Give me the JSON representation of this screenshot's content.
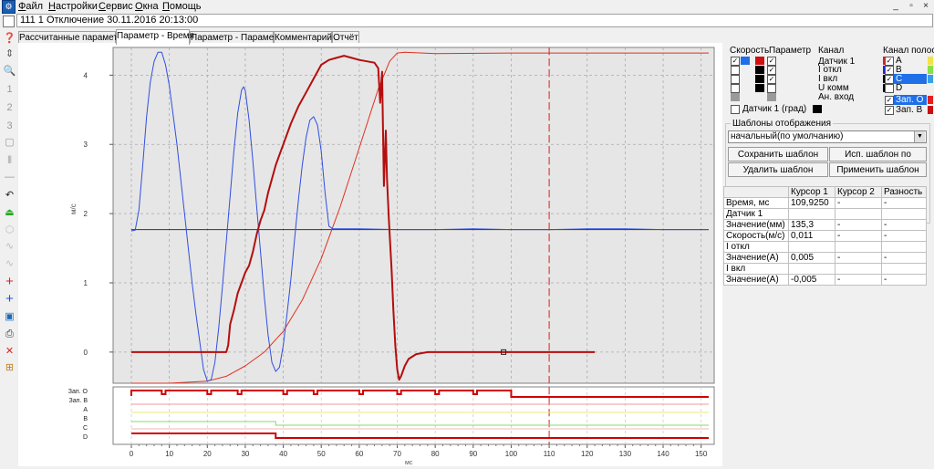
{
  "menu": [
    "Файл",
    "Настройки",
    "Сервис",
    "Окна",
    "Помощь"
  ],
  "window_controls": [
    "_",
    "▫",
    "×"
  ],
  "document_title": "111 1 Отключение 30.11.2016 20:13:00",
  "toolbar_icons": [
    "open-icon",
    "help-icon",
    "fit-icon",
    "zoom-icon",
    "cursor-1-icon",
    "cursor-2-icon",
    "cursor-3-icon",
    "frame-icon",
    "bar-icon",
    "line-icon",
    "undo-icon",
    "marker-icon",
    "shape-icon",
    "wave-icon",
    "wave2-icon",
    "add-red-icon",
    "add-blue-icon",
    "select-icon",
    "print-icon",
    "close-icon",
    "grid-icon"
  ],
  "tabs": [
    "Рассчитанные параметры",
    "Параметр - Время",
    "Параметр - Параметр",
    "Комментарий",
    "Отчёт"
  ],
  "active_tab": "Параметр - Время",
  "chart_data": {
    "type": "line",
    "ylabel": "м/с",
    "xlabel": "мс",
    "xlim": [
      -3,
      151
    ],
    "ylim": [
      -0.45,
      4.4
    ],
    "x_ticks": [
      0,
      10,
      20,
      30,
      40,
      50,
      60,
      70,
      80,
      90,
      100,
      110,
      120,
      130,
      140,
      150
    ],
    "y_ticks": [
      0,
      1,
      2,
      3,
      4
    ],
    "grid": true,
    "cursor_x": 110,
    "series": [
      {
        "color": "#2f4fe0",
        "points": [
          [
            0,
            1.75
          ],
          [
            1,
            1.76
          ],
          [
            2,
            2.05
          ],
          [
            3,
            2.7
          ],
          [
            4,
            3.4
          ],
          [
            5,
            3.9
          ],
          [
            6,
            4.2
          ],
          [
            7,
            4.33
          ],
          [
            8,
            4.33
          ],
          [
            9,
            4.15
          ],
          [
            10,
            3.85
          ],
          [
            12,
            3.0
          ],
          [
            14,
            2.0
          ],
          [
            16,
            1.0
          ],
          [
            17,
            0.55
          ],
          [
            18,
            0.15
          ],
          [
            19,
            -0.25
          ],
          [
            20,
            -0.42
          ],
          [
            21,
            -0.4
          ],
          [
            22,
            -0.15
          ],
          [
            23,
            0.35
          ],
          [
            24,
            0.95
          ],
          [
            25,
            1.6
          ],
          [
            26,
            2.25
          ],
          [
            27,
            2.9
          ],
          [
            28,
            3.45
          ],
          [
            29,
            3.78
          ],
          [
            29.5,
            3.83
          ],
          [
            30,
            3.78
          ],
          [
            31,
            3.35
          ],
          [
            32,
            2.75
          ],
          [
            33,
            2.1
          ],
          [
            34,
            1.45
          ],
          [
            35,
            0.8
          ],
          [
            36,
            0.25
          ],
          [
            37,
            -0.15
          ],
          [
            38,
            -0.28
          ],
          [
            39,
            -0.22
          ],
          [
            40,
            0.1
          ],
          [
            41,
            0.55
          ],
          [
            42,
            1.05
          ],
          [
            43,
            1.65
          ],
          [
            44,
            2.2
          ],
          [
            45,
            2.7
          ],
          [
            46,
            3.1
          ],
          [
            47,
            3.35
          ],
          [
            48,
            3.4
          ],
          [
            49,
            3.28
          ],
          [
            50,
            2.9
          ],
          [
            51,
            2.3
          ],
          [
            52,
            1.82
          ],
          [
            53,
            1.78
          ],
          [
            60,
            1.78
          ],
          [
            70,
            1.77
          ],
          [
            80,
            1.77
          ],
          [
            90,
            1.78
          ],
          [
            100,
            1.77
          ],
          [
            110,
            1.77
          ],
          [
            120,
            1.78
          ],
          [
            130,
            1.78
          ],
          [
            140,
            1.77
          ],
          [
            150,
            1.77
          ],
          [
            152,
            1.77
          ]
        ]
      },
      {
        "color": "#e03020",
        "points": [
          [
            0,
            -0.45
          ],
          [
            10,
            -0.45
          ],
          [
            20,
            -0.42
          ],
          [
            25,
            -0.35
          ],
          [
            30,
            -0.2
          ],
          [
            35,
            0.0
          ],
          [
            40,
            0.3
          ],
          [
            45,
            0.75
          ],
          [
            50,
            1.35
          ],
          [
            55,
            2.1
          ],
          [
            60,
            2.95
          ],
          [
            65,
            3.8
          ],
          [
            68,
            4.2
          ],
          [
            70,
            4.32
          ],
          [
            72,
            4.33
          ],
          [
            80,
            4.31
          ],
          [
            100,
            4.32
          ],
          [
            120,
            4.32
          ],
          [
            140,
            4.32
          ],
          [
            152,
            4.32
          ]
        ]
      },
      {
        "color": "#b40e0e",
        "width": 2,
        "points": [
          [
            0,
            0.0
          ],
          [
            10,
            0.0
          ],
          [
            20,
            0.0
          ],
          [
            25,
            0.0
          ],
          [
            25.5,
            0.1
          ],
          [
            26,
            0.4
          ],
          [
            27,
            0.6
          ],
          [
            28,
            0.85
          ],
          [
            29,
            1.0
          ],
          [
            30,
            1.15
          ],
          [
            31,
            1.25
          ],
          [
            32,
            1.45
          ],
          [
            33,
            1.7
          ],
          [
            34,
            1.9
          ],
          [
            35,
            2.05
          ],
          [
            36,
            2.3
          ],
          [
            37,
            2.5
          ],
          [
            38,
            2.7
          ],
          [
            39,
            2.85
          ],
          [
            40,
            3.0
          ],
          [
            42,
            3.3
          ],
          [
            44,
            3.55
          ],
          [
            46,
            3.75
          ],
          [
            48,
            3.95
          ],
          [
            50,
            4.15
          ],
          [
            52,
            4.22
          ],
          [
            54,
            4.25
          ],
          [
            56,
            4.28
          ],
          [
            58,
            4.25
          ],
          [
            60,
            4.22
          ],
          [
            62,
            4.2
          ],
          [
            64,
            4.18
          ],
          [
            65,
            4.1
          ],
          [
            65.5,
            3.6
          ],
          [
            66,
            4.05
          ],
          [
            66.5,
            2.4
          ],
          [
            67,
            3.2
          ],
          [
            67.3,
            2.5
          ],
          [
            67.8,
            1.9
          ],
          [
            68.5,
            1.2
          ],
          [
            69,
            0.6
          ],
          [
            69.5,
            0.1
          ],
          [
            70,
            -0.25
          ],
          [
            70.5,
            -0.4
          ],
          [
            71,
            -0.35
          ],
          [
            72,
            -0.2
          ],
          [
            73,
            -0.1
          ],
          [
            75,
            -0.03
          ],
          [
            78,
            0.0
          ],
          [
            80,
            0.0
          ],
          [
            90,
            0.0
          ],
          [
            100,
            0.0
          ],
          [
            110,
            0.0
          ],
          [
            122,
            0.0
          ]
        ]
      },
      {
        "color": "#333333",
        "points": [
          [
            0,
            1.77
          ],
          [
            152,
            1.77
          ]
        ]
      }
    ],
    "marker": {
      "x": 98,
      "y": 0.0
    },
    "digital_channels": [
      {
        "label": "Зап. О",
        "color": "#d00000"
      },
      {
        "label": "Зап. В",
        "color": "#f09a9a"
      },
      {
        "label": "A",
        "color": "#ece87a"
      },
      {
        "label": "B",
        "color": "#7ddc6e"
      },
      {
        "label": "C",
        "color": "#f3b4b4"
      },
      {
        "label": "D",
        "color": "#d00000"
      }
    ]
  },
  "panel": {
    "hdr_speed": "Скорость",
    "hdr_param": "Параметр",
    "hdr_channel": "Канал",
    "hdr_band": "Канал полосы",
    "channels": [
      "Датчик 1",
      "I откл",
      "I вкл",
      "U комм",
      "Ан. вход"
    ],
    "sensor_deg": "Датчик 1 (град)",
    "bands": [
      "A",
      "B",
      "C",
      "D",
      "Зап. О",
      "Зап. В"
    ],
    "band_colors": [
      "#f2e24a",
      "#88e04a",
      "#3aa0e8",
      "#f2f2f2",
      "#e81e1e",
      "#c81010"
    ],
    "templates_title": "Шаблоны отображения",
    "template_value": "начальный(по умолчанию)",
    "btn_save_as": "Сохранить шаблон как...",
    "btn_use_default": "Исп. шаблон по умолч.",
    "btn_delete": "Удалить шаблон",
    "btn_apply": "Применить шаблон"
  },
  "cursor_table": {
    "headers": [
      "",
      "Курсор 1",
      "Курсор 2",
      "Разность"
    ],
    "rows": [
      [
        "Время, мс",
        "109,9250",
        "-",
        "-"
      ],
      [
        "Датчик 1",
        "",
        "",
        ""
      ],
      [
        "Значение(мм)",
        "135,3",
        "-",
        "-"
      ],
      [
        "Скорость(м/с)",
        "0,011",
        "-",
        "-"
      ],
      [
        "I откл",
        "",
        "",
        ""
      ],
      [
        "Значение(А)",
        "0,005",
        "-",
        "-"
      ],
      [
        "I вкл",
        "",
        "",
        ""
      ],
      [
        "Значение(А)",
        "-0,005",
        "-",
        "-"
      ]
    ]
  }
}
